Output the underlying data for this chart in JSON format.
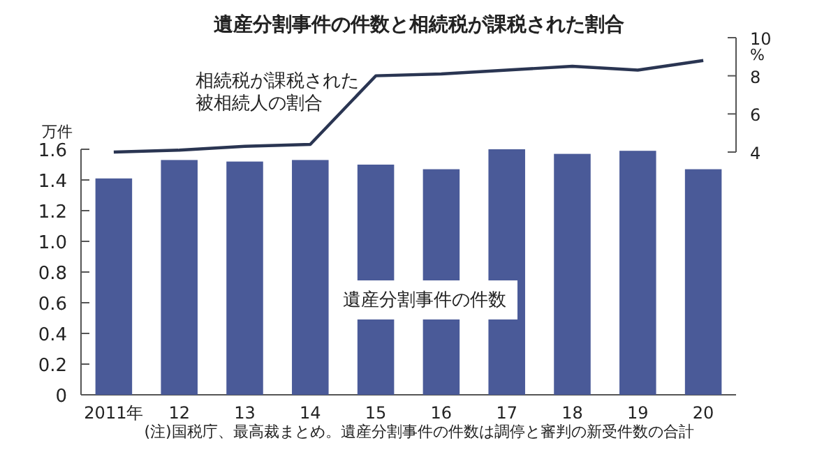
{
  "chart_data": [
    {
      "type": "line",
      "title": "遺産分割事件の件数と相続税が課税された割合",
      "categories": [
        null,
        null,
        null,
        null,
        null,
        null,
        null,
        null,
        null,
        null
      ],
      "series": [
        {
          "name": "相続税が課税された被相続人の割合",
          "color": "#2a3552",
          "values": [
            4.0,
            4.1,
            4.3,
            4.4,
            8.0,
            8.1,
            8.3,
            8.5,
            8.3,
            8.8
          ]
        }
      ],
      "ylim": [
        4,
        10
      ],
      "yticks": [
        4,
        6,
        8,
        10
      ],
      "tick_labels": "y",
      "annotations": [
        "%"
      ]
    },
    {
      "type": "bar",
      "ylabel": "万件",
      "categories": [
        "2011年",
        "12",
        "13",
        "14",
        "15",
        "16",
        "17",
        "18",
        "19",
        "20"
      ],
      "series": [
        {
          "name": "遺産分割事件の件数",
          "color": "#4a5a98",
          "values": [
            1.41,
            1.53,
            1.52,
            1.53,
            1.5,
            1.47,
            1.6,
            1.57,
            1.59,
            1.47
          ]
        }
      ],
      "ylim": [
        0,
        1.6
      ],
      "yticks": [
        "0",
        0.2,
        0.4,
        0.6,
        0.8,
        "1.0",
        1.2,
        1.4,
        1.6
      ],
      "annotations": [
        "(注)国税庁、最高裁まとめ。遺産分割事件の件数は調停と審判の新受件数の合計"
      ]
    }
  ]
}
